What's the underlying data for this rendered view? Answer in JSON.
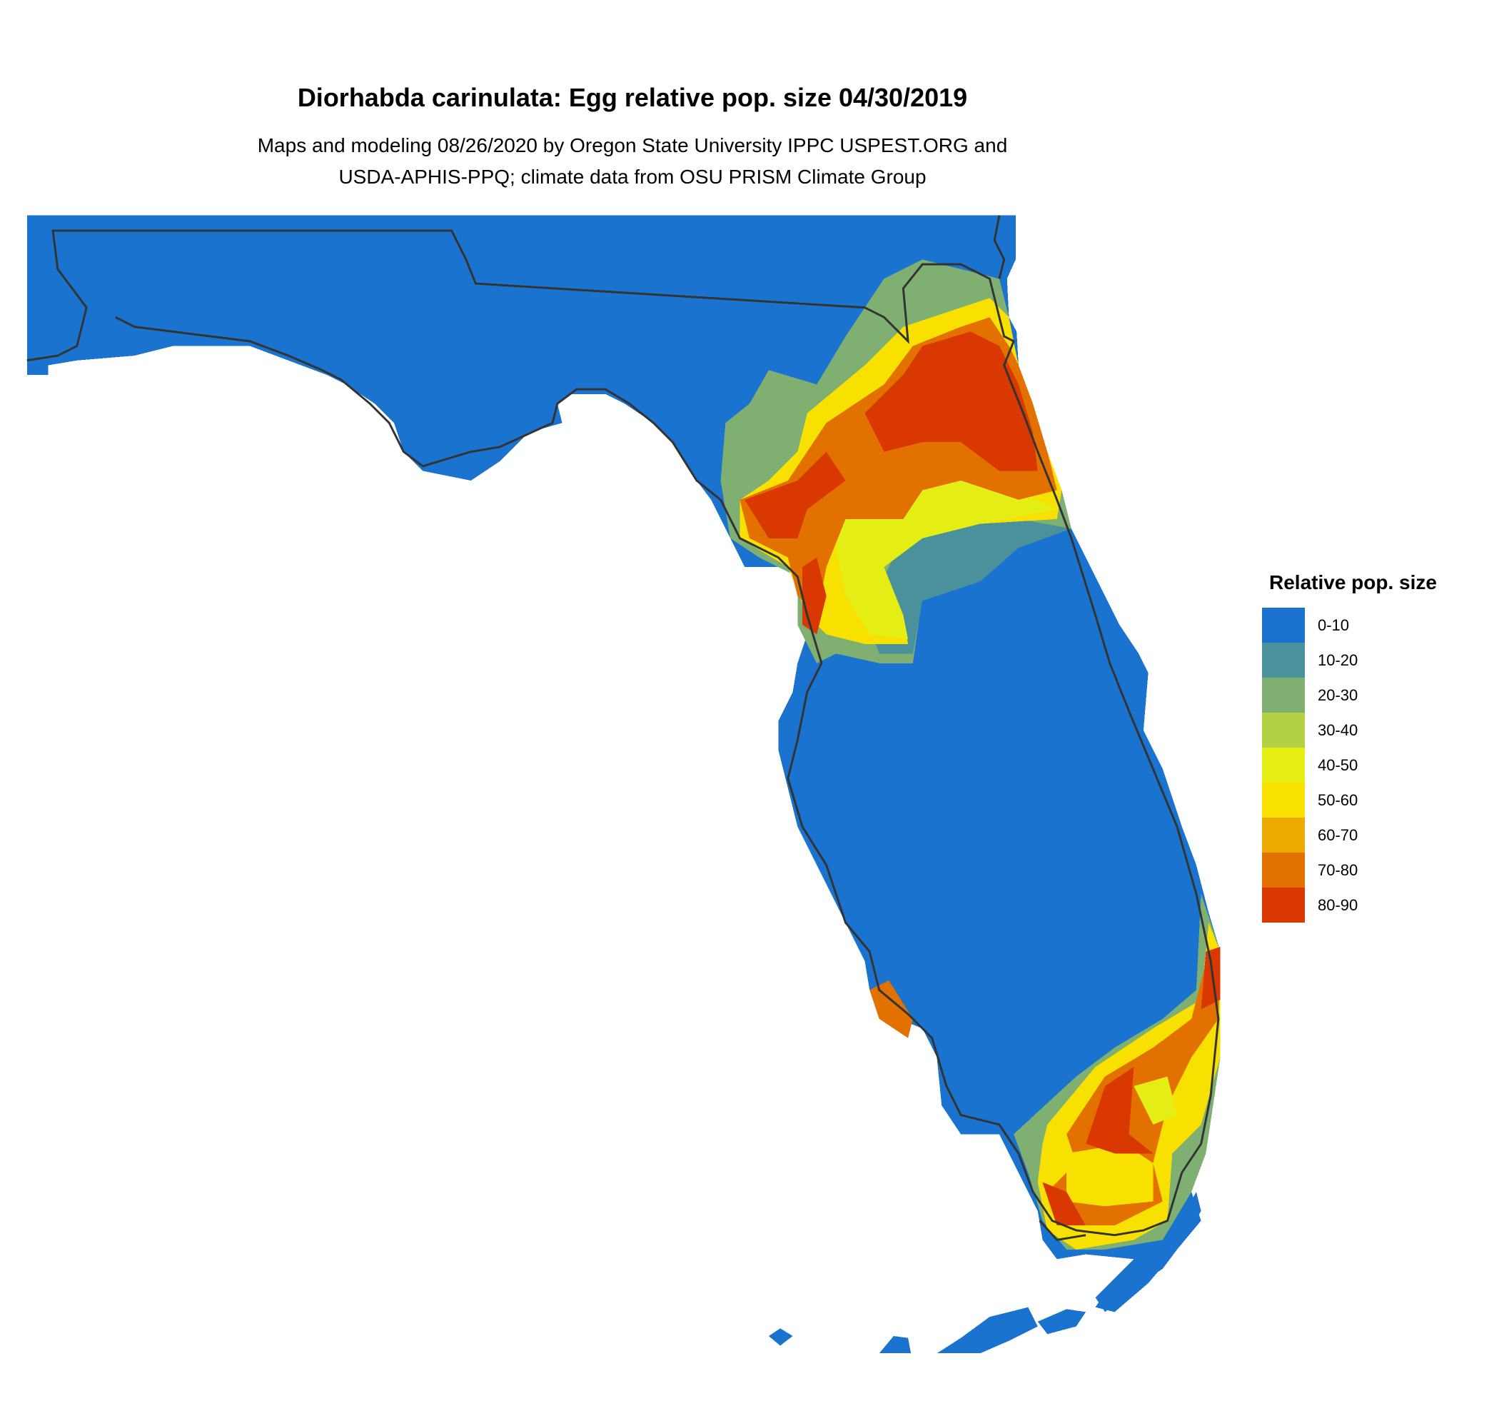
{
  "title": "Diorhabda carinulata: Egg relative pop. size 04/30/2019",
  "subtitle_line1": "Maps and modeling 08/26/2020 by Oregon State University IPPC USPEST.ORG and",
  "subtitle_line2": "USDA-APHIS-PPQ; climate data from OSU PRISM Climate Group",
  "legend": {
    "title": "Relative pop. size",
    "items": [
      {
        "label": "0-10",
        "color": "#1a74cf"
      },
      {
        "label": "10-20",
        "color": "#4a919b"
      },
      {
        "label": "20-30",
        "color": "#7fb072"
      },
      {
        "label": "30-40",
        "color": "#b2d145"
      },
      {
        "label": "40-50",
        "color": "#e5ee14"
      },
      {
        "label": "50-60",
        "color": "#f8e000"
      },
      {
        "label": "60-70",
        "color": "#eeaa00"
      },
      {
        "label": "70-80",
        "color": "#e37100"
      },
      {
        "label": "80-90",
        "color": "#d93800"
      }
    ]
  }
}
